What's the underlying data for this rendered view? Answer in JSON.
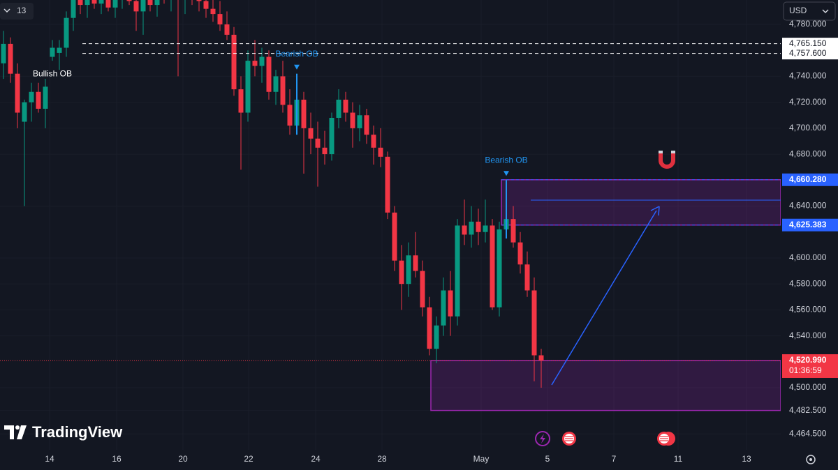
{
  "chart_data": {
    "type": "candlestick",
    "x": [
      0,
      1,
      2,
      3,
      4,
      5,
      6,
      7,
      8,
      9,
      10,
      11,
      12,
      13,
      14,
      15,
      16,
      17,
      18,
      19,
      20,
      21,
      22,
      23,
      24,
      25,
      26,
      27,
      28,
      29,
      30,
      31,
      32,
      33,
      34,
      35,
      36,
      37,
      38,
      39,
      40,
      41,
      42,
      43,
      44,
      45,
      46,
      47,
      48,
      49,
      50,
      51,
      52,
      53,
      54,
      55,
      56,
      57,
      58,
      59,
      60,
      61,
      62,
      63,
      64,
      65,
      66,
      67,
      68,
      69,
      70,
      71,
      72,
      73,
      74,
      75,
      76,
      77
    ],
    "open": [
      4750,
      4765,
      4742,
      4705,
      4720,
      4728,
      4715,
      4755,
      4758,
      4762,
      4785,
      4800,
      4795,
      4804,
      4796,
      4800,
      4793,
      4799,
      4806,
      4798,
      4790,
      4800,
      4795,
      4803,
      4799,
      4806,
      4800,
      4808,
      4803,
      4798,
      4792,
      4788,
      4780,
      4772,
      4730,
      4712,
      4752,
      4748,
      4755,
      4728,
      4740,
      4718,
      4702,
      4722,
      4700,
      4692,
      4685,
      4680,
      4708,
      4722,
      4712,
      4700,
      4710,
      4695,
      4685,
      4678,
      4635,
      4598,
      4580,
      4602,
      4590,
      4562,
      4530,
      4548,
      4575,
      4555,
      4625,
      4618,
      4628,
      4620,
      4625,
      4562,
      4622,
      4630,
      4612,
      4595,
      4575,
      4525
    ],
    "high": [
      4775,
      4770,
      4750,
      4722,
      4735,
      4735,
      4738,
      4768,
      4768,
      4790,
      4805,
      4810,
      4808,
      4812,
      4806,
      4810,
      4803,
      4812,
      4815,
      4808,
      4804,
      4812,
      4808,
      4815,
      4810,
      4812,
      4815,
      4816,
      4812,
      4806,
      4800,
      4798,
      4790,
      4778,
      4740,
      4760,
      4768,
      4762,
      4760,
      4745,
      4752,
      4730,
      4742,
      4728,
      4712,
      4705,
      4698,
      4712,
      4730,
      4728,
      4720,
      4718,
      4715,
      4702,
      4700,
      4682,
      4640,
      4610,
      4612,
      4620,
      4598,
      4570,
      4555,
      4585,
      4590,
      4630,
      4645,
      4640,
      4638,
      4645,
      4630,
      4628,
      4660,
      4640,
      4620,
      4605,
      4585,
      4530
    ],
    "low": [
      4738,
      4735,
      4700,
      4640,
      4705,
      4712,
      4700,
      4752,
      4745,
      4755,
      4775,
      4788,
      4785,
      4792,
      4788,
      4790,
      4785,
      4792,
      4795,
      4775,
      4772,
      4790,
      4786,
      4796,
      4790,
      4740,
      4788,
      4795,
      4790,
      4785,
      4782,
      4775,
      4768,
      4725,
      4668,
      4705,
      4740,
      4735,
      4722,
      4718,
      4712,
      4695,
      4695,
      4665,
      4680,
      4655,
      4672,
      4675,
      4700,
      4705,
      4685,
      4690,
      4688,
      4672,
      4670,
      4630,
      4590,
      4560,
      4570,
      4585,
      4555,
      4525,
      4519,
      4540,
      4540,
      4548,
      4610,
      4608,
      4610,
      4612,
      4560,
      4555,
      4615,
      4608,
      4588,
      4570,
      4505,
      4500
    ],
    "close": [
      4765,
      4742,
      4712,
      4720,
      4728,
      4715,
      4732,
      4762,
      4762,
      4785,
      4800,
      4795,
      4804,
      4796,
      4800,
      4793,
      4799,
      4806,
      4798,
      4790,
      4800,
      4795,
      4803,
      4799,
      4806,
      4800,
      4808,
      4803,
      4798,
      4792,
      4788,
      4780,
      4772,
      4730,
      4712,
      4752,
      4748,
      4755,
      4728,
      4740,
      4718,
      4702,
      4722,
      4700,
      4692,
      4685,
      4680,
      4708,
      4722,
      4712,
      4700,
      4710,
      4695,
      4685,
      4678,
      4635,
      4598,
      4580,
      4602,
      4590,
      4562,
      4530,
      4548,
      4575,
      4555,
      4625,
      4618,
      4628,
      4620,
      4625,
      4562,
      4622,
      4630,
      4612,
      4595,
      4575,
      4525,
      4520.99
    ],
    "up_color": "#089981",
    "down_color": "#f23645",
    "xlim": [
      -0.5,
      111.3
    ],
    "xticks": [
      {
        "value": 6.6,
        "label": "14"
      },
      {
        "value": 16.2,
        "label": "16"
      },
      {
        "value": 25.7,
        "label": "20"
      },
      {
        "value": 35.1,
        "label": "22"
      },
      {
        "value": 44.7,
        "label": "24"
      },
      {
        "value": 54.2,
        "label": "28"
      },
      {
        "value": 68.4,
        "label": "May"
      },
      {
        "value": 77.9,
        "label": "5"
      },
      {
        "value": 87.4,
        "label": "7"
      },
      {
        "value": 96.6,
        "label": "11"
      },
      {
        "value": 106.4,
        "label": "13"
      }
    ],
    "ylim": [
      4452.2,
      4798.8
    ],
    "yticks": [
      {
        "value": 4780,
        "label": "4,780.000"
      },
      {
        "value": 4740,
        "label": "4,740.000"
      },
      {
        "value": 4720,
        "label": "4,720.000"
      },
      {
        "value": 4700,
        "label": "4,700.000"
      },
      {
        "value": 4680,
        "label": "4,680.000"
      },
      {
        "value": 4640,
        "label": "4,640.000"
      },
      {
        "value": 4600,
        "label": "4,600.000"
      },
      {
        "value": 4580,
        "label": "4,580.000"
      },
      {
        "value": 4560,
        "label": "4,560.000"
      },
      {
        "value": 4540,
        "label": "4,540.000"
      },
      {
        "value": 4500,
        "label": "4,500.000"
      },
      {
        "value": 4482.5,
        "label": "4,482.500"
      },
      {
        "value": 4464.5,
        "label": "4,464.500"
      }
    ],
    "lines": [
      {
        "value": 4765.15,
        "label": "4,765.150",
        "start": 11.3
      },
      {
        "value": 4757.6,
        "label": "4,757.600",
        "start": 11.3
      }
    ],
    "zones": [
      {
        "low": 4625.383,
        "high": 4660.28,
        "label_low": "4,625.383",
        "label_high": "4,660.280",
        "start": 71.3,
        "mid": 4644.6,
        "mid_start": 75.5,
        "color": "#9c27b0"
      },
      {
        "low": 4482.5,
        "high": 4520.99,
        "start": 61.2,
        "color": "#9c27b0"
      }
    ],
    "last_price": {
      "value": 4520.99,
      "label": "4,520.990",
      "countdown": "01:36:59"
    },
    "annotations": [
      {
        "text": "Bullish OB",
        "candle": 7,
        "side": "below"
      },
      {
        "text": "Bearish OB",
        "candle": 42,
        "side": "above"
      },
      {
        "text": "Bearish OB",
        "candle": 72,
        "side": "above"
      }
    ]
  },
  "toolbar": {
    "interval": "13",
    "currency": "USD"
  },
  "logo": "TradingView"
}
